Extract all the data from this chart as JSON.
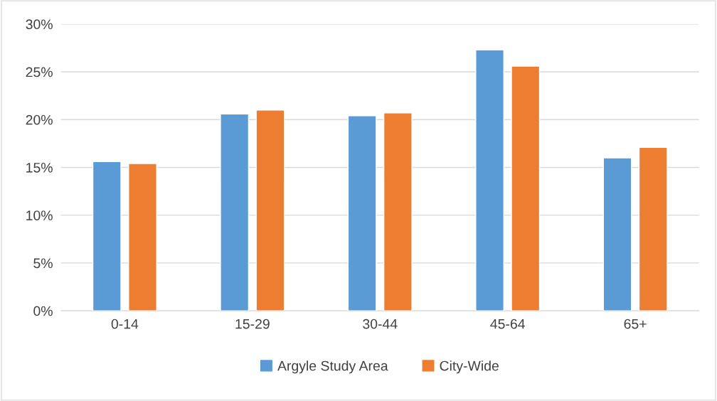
{
  "chart_data": {
    "type": "bar",
    "categories": [
      "0-14",
      "15-29",
      "30-44",
      "45-64",
      "65+"
    ],
    "series": [
      {
        "name": "Argyle Study Area",
        "color": "#5b9bd5",
        "values": [
          15.6,
          20.6,
          20.4,
          27.3,
          16.0
        ]
      },
      {
        "name": "City-Wide",
        "color": "#ed7d31",
        "values": [
          15.4,
          21.0,
          20.7,
          25.6,
          17.1
        ]
      }
    ],
    "ylim": [
      0,
      30
    ],
    "yticks": [
      {
        "value": 0,
        "label": "0%"
      },
      {
        "value": 5,
        "label": "5%"
      },
      {
        "value": 10,
        "label": "10%"
      },
      {
        "value": 15,
        "label": "15%"
      },
      {
        "value": 20,
        "label": "20%"
      },
      {
        "value": 25,
        "label": "25%"
      },
      {
        "value": 30,
        "label": "30%"
      }
    ],
    "grid": "y",
    "legend": "bottom"
  }
}
